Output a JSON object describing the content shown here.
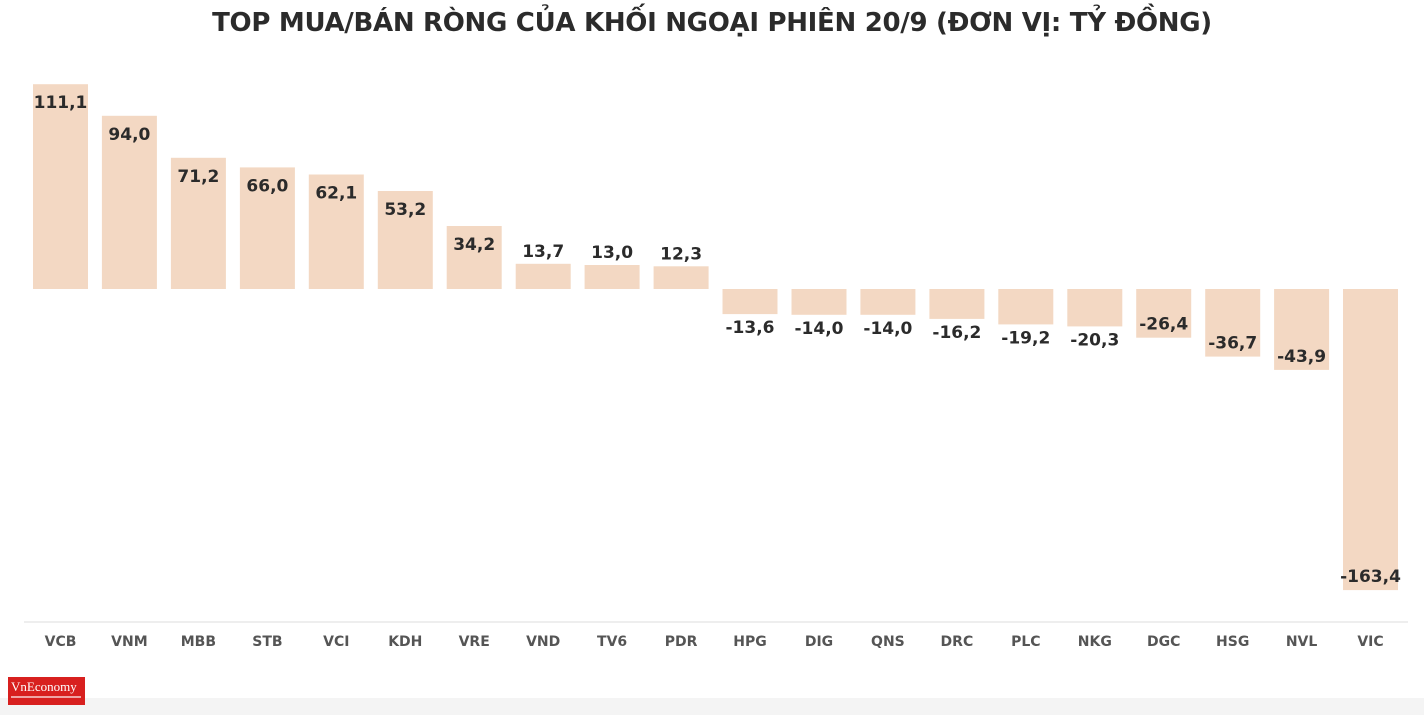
{
  "chart_data": {
    "type": "bar",
    "title": "TOP MUA/BÁN RÒNG CỦA KHỐI NGOẠI PHIÊN 20/9 (ĐƠN VỊ: TỶ ĐỒNG)",
    "xlabel": "",
    "ylabel": "",
    "categories": [
      "VCB",
      "VNM",
      "MBB",
      "STB",
      "VCI",
      "KDH",
      "VRE",
      "VND",
      "TV6",
      "PDR",
      "HPG",
      "DIG",
      "QNS",
      "DRC",
      "PLC",
      "NKG",
      "DGC",
      "HSG",
      "NVL",
      "VIC"
    ],
    "values": [
      111.1,
      94.0,
      71.2,
      66.0,
      62.1,
      53.2,
      34.2,
      13.7,
      13.0,
      12.3,
      -13.6,
      -14.0,
      -14.0,
      -16.2,
      -19.2,
      -20.3,
      -26.4,
      -36.7,
      -43.9,
      -163.4
    ],
    "value_labels": [
      "111,1",
      "94,0",
      "71,2",
      "66,0",
      "62,1",
      "53,2",
      "34,2",
      "13,7",
      "13,0",
      "12,3",
      "-13,6",
      "-14,0",
      "-14,0",
      "-16,2",
      "-19,2",
      "-20,3",
      "-26,4",
      "-36,7",
      "-43,9",
      "-163,4"
    ],
    "ylim": [
      -163.4,
      111.1
    ],
    "grid": false,
    "legend": "none",
    "bar_color": "#f3d8c3"
  },
  "logo": {
    "text": "VnEconomy",
    "color": "#d8201f"
  }
}
